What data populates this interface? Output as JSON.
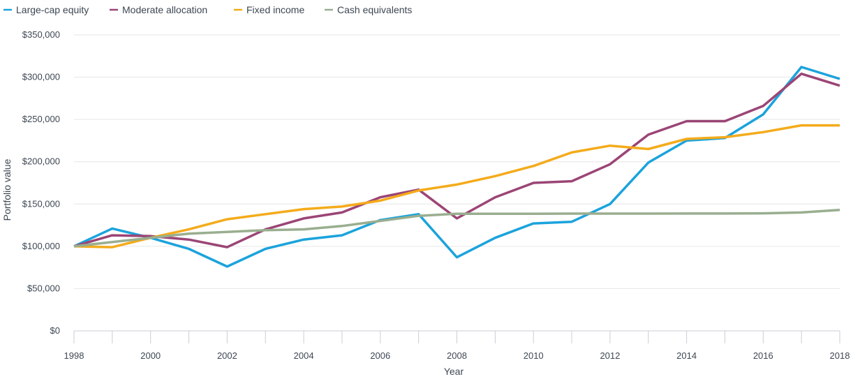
{
  "chart_data": {
    "type": "line",
    "title": "",
    "xlabel": "Year",
    "ylabel": "Portfolio value",
    "x": [
      1998,
      1999,
      2000,
      2001,
      2002,
      2003,
      2004,
      2005,
      2006,
      2007,
      2008,
      2009,
      2010,
      2011,
      2012,
      2013,
      2014,
      2015,
      2016,
      2017,
      2018
    ],
    "x_tick_labels": [
      "1998",
      "2000",
      "2002",
      "2004",
      "2006",
      "2008",
      "2010",
      "2012",
      "2014",
      "2016",
      "2018"
    ],
    "xlim": [
      1998,
      2018
    ],
    "ylim": [
      0,
      350000
    ],
    "y_ticks": [
      0,
      50000,
      100000,
      150000,
      200000,
      250000,
      300000,
      350000
    ],
    "y_tick_labels": [
      "$0",
      "$50,000",
      "$100,000",
      "$150,000",
      "$200,000",
      "$250,000",
      "$300,000",
      "$350,000"
    ],
    "grid": true,
    "legend_position": "top-left",
    "series": [
      {
        "name": "Large-cap equity",
        "color": "#1ba3dc",
        "values": [
          100000,
          121000,
          110000,
          97000,
          76000,
          97000,
          108000,
          113000,
          131000,
          138000,
          87000,
          110000,
          127000,
          129000,
          150000,
          199000,
          225000,
          228000,
          256000,
          312000,
          298000
        ]
      },
      {
        "name": "Moderate allocation",
        "color": "#9b4576",
        "values": [
          100000,
          113000,
          112000,
          108000,
          99000,
          120000,
          133000,
          140000,
          158000,
          167000,
          133000,
          158000,
          175000,
          177000,
          197000,
          232000,
          248000,
          248000,
          266000,
          304000,
          290000
        ]
      },
      {
        "name": "Fixed income",
        "color": "#f4ab1b",
        "values": [
          100000,
          99000,
          110000,
          120000,
          132000,
          138000,
          144000,
          147000,
          154000,
          166000,
          173000,
          183000,
          195000,
          211000,
          219000,
          215000,
          227000,
          229000,
          235000,
          243000,
          243000
        ]
      },
      {
        "name": "Cash equivalents",
        "color": "#99ae8f",
        "values": [
          100000,
          105000,
          110000,
          115000,
          117000,
          119000,
          120000,
          124000,
          130000,
          136000,
          138500,
          138500,
          138500,
          138700,
          138700,
          138700,
          138800,
          138800,
          139000,
          140000,
          143000
        ]
      }
    ]
  }
}
